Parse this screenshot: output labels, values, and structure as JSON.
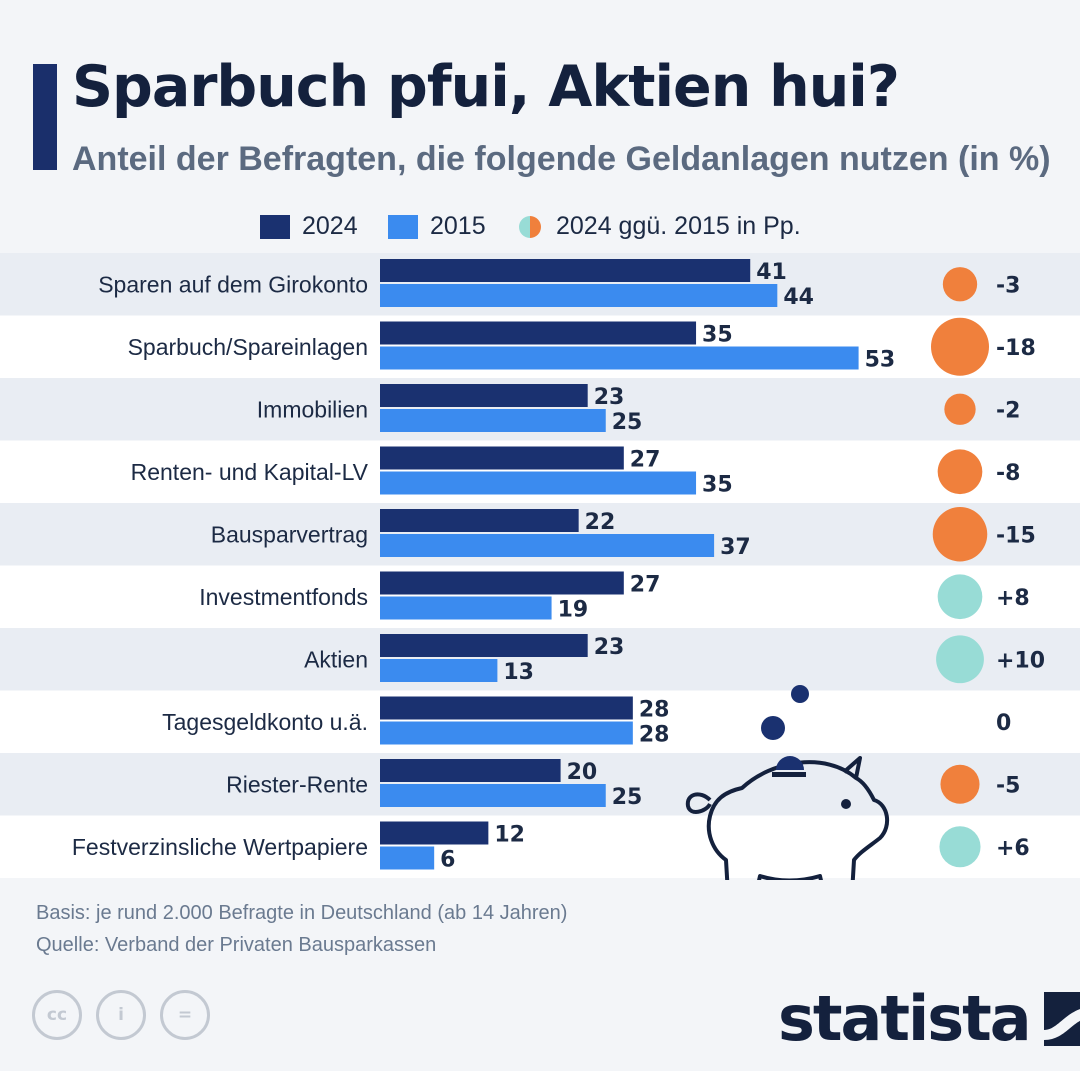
{
  "header": {
    "title": "Sparbuch pfui, Aktien hui?",
    "subtitle": "Anteil der Befragten, die folgende Geldanlagen nutzen (in %)"
  },
  "legend": {
    "series_2024": "2024",
    "series_2015": "2015",
    "change": "2024 ggü. 2015 in Pp."
  },
  "colors": {
    "bar_2024": "#1a3170",
    "bar_2015": "#3b8bef",
    "negative": "#f0803c",
    "positive": "#98dcd6",
    "band": "#e9edf3"
  },
  "chart_data": {
    "type": "bar",
    "orientation": "horizontal",
    "title": "Sparbuch pfui, Aktien hui?",
    "subtitle": "Anteil der Befragten, die folgende Geldanlagen nutzen (in %)",
    "categories": [
      "Sparen auf dem Girokonto",
      "Sparbuch/Spareinlagen",
      "Immobilien",
      "Renten- und Kapital-LV",
      "Bausparvertrag",
      "Investmentfonds",
      "Aktien",
      "Tagesgeldkonto u.ä.",
      "Riester-Rente",
      "Festverzinsliche Wertpapiere"
    ],
    "series": [
      {
        "name": "2024",
        "values": [
          41,
          35,
          23,
          27,
          22,
          27,
          23,
          28,
          20,
          12
        ]
      },
      {
        "name": "2015",
        "values": [
          44,
          53,
          25,
          35,
          37,
          19,
          13,
          28,
          25,
          6
        ]
      }
    ],
    "change": {
      "name": "2024 ggü. 2015 in Pp.",
      "values": [
        -3,
        -18,
        -2,
        -8,
        -15,
        8,
        10,
        0,
        -5,
        6
      ],
      "labels": [
        "-3",
        "-18",
        "-2",
        "-8",
        "-15",
        "+8",
        "+10",
        "0",
        "-5",
        "+6"
      ]
    },
    "xlim": [
      0,
      60
    ],
    "grid": false,
    "legend_position": "top"
  },
  "footer": {
    "basis": "Basis: je rund 2.000 Befragte in Deutschland (ab 14 Jahren)",
    "source": "Quelle: Verband der Privaten Bausparkassen",
    "brand": "statista",
    "license_icons": [
      "cc",
      "i",
      "="
    ]
  }
}
